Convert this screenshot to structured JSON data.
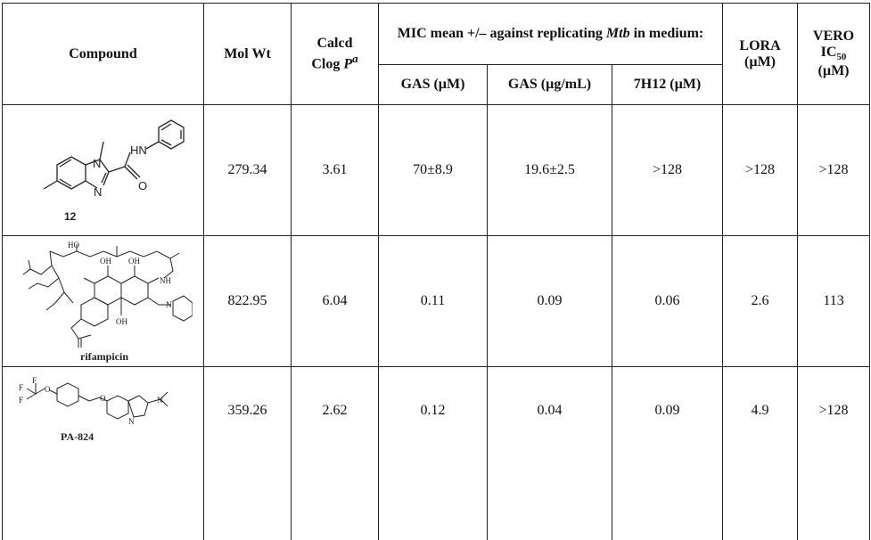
{
  "table": {
    "headers": {
      "compound": "Compound",
      "mol_wt": "Mol Wt",
      "clogp_prefix": "Calcd",
      "clogp_main": "Clog ",
      "clogp_p": "P",
      "clogp_sup": "a",
      "mic_group_prefix": "MIC mean +/– against replicating ",
      "mic_group_italic": "Mtb",
      "mic_group_suffix": " in medium:",
      "gas_um": "GAS (µM)",
      "gas_ugml": "GAS (µg/mL)",
      "h12_um": "7H12 (µM)",
      "lora_line1": "LORA",
      "lora_line2": "(µM)",
      "vero_line1": "VERO",
      "vero_ic": "IC",
      "vero_sub": "50",
      "vero_line3": "(µM)"
    },
    "rows": [
      {
        "compound": "12",
        "mol_wt": "279.34",
        "clogp": "3.61",
        "gas_um": "70±8.9",
        "gas_ugml": "19.6±2.5",
        "h12_um": ">128",
        "lora": ">128",
        "vero": ">128"
      },
      {
        "compound": "rifampicin",
        "mol_wt": "822.95",
        "clogp": "6.04",
        "gas_um": "0.11",
        "gas_ugml": "0.09",
        "h12_um": "0.06",
        "lora": "2.6",
        "vero": "113"
      },
      {
        "compound": "PA-824",
        "mol_wt": "359.26",
        "clogp": "2.62",
        "gas_um": "0.12",
        "gas_ugml": "0.04",
        "h12_um": "0.09",
        "lora": "4.9",
        "vero": ">128"
      }
    ]
  },
  "structure_labels": {
    "s12": {
      "hn": "HN",
      "n1": "N",
      "n2": "N",
      "o": "O"
    },
    "rif": {
      "ho": "HO",
      "oh1": "OH",
      "oh2": "OH",
      "oh3": "OH",
      "nh": "NH",
      "n": "N"
    },
    "pa": {
      "o1": "O",
      "o2": "O",
      "n": "N",
      "no2": "N"
    }
  }
}
